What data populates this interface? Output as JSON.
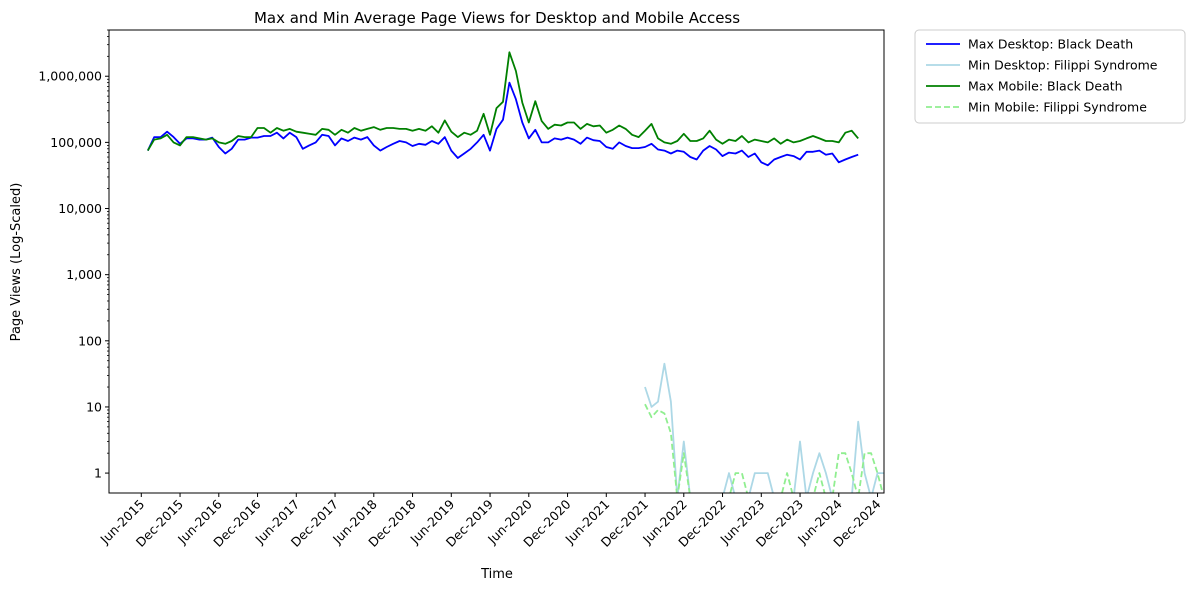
{
  "chart_data": {
    "type": "line",
    "title": "Max and Min Average Page Views for Desktop and Mobile Access",
    "xlabel": "Time",
    "ylabel": "Page Views (Log-Scaled)",
    "yscale": "log",
    "ylim": [
      0.5,
      5000000
    ],
    "xlim": [
      "2015-01",
      "2025-01"
    ],
    "x_ticks": [
      "Jun-2015",
      "Dec-2015",
      "Jun-2016",
      "Dec-2016",
      "Jun-2017",
      "Dec-2017",
      "Jun-2018",
      "Dec-2018",
      "Jun-2019",
      "Dec-2019",
      "Jun-2020",
      "Dec-2020",
      "Jun-2021",
      "Dec-2021",
      "Jun-2022",
      "Dec-2022",
      "Jun-2023",
      "Dec-2023",
      "Jun-2024",
      "Dec-2024"
    ],
    "x_tick_dates": [
      "2015-06",
      "2015-12",
      "2016-06",
      "2016-12",
      "2017-06",
      "2017-12",
      "2018-06",
      "2018-12",
      "2019-06",
      "2019-12",
      "2020-06",
      "2020-12",
      "2021-06",
      "2021-12",
      "2022-06",
      "2022-12",
      "2023-06",
      "2023-12",
      "2024-06",
      "2024-12"
    ],
    "y_ticks": [
      1,
      10,
      100,
      1000,
      10000,
      100000,
      1000000
    ],
    "y_tick_labels": [
      "1",
      "10",
      "100",
      "1,000",
      "10,000",
      "100,000",
      "1,000,000"
    ],
    "grid": false,
    "legend_position": "outside-top-right",
    "series": [
      {
        "name": "Max Desktop: Black Death",
        "color": "#0000ff",
        "style": "solid",
        "start": "2015-07",
        "values": [
          75000,
          120000,
          120000,
          145000,
          120000,
          95000,
          115000,
          115000,
          110000,
          110000,
          118000,
          85000,
          68000,
          80000,
          110000,
          110000,
          118000,
          118000,
          125000,
          125000,
          140000,
          115000,
          140000,
          120000,
          80000,
          90000,
          100000,
          130000,
          125000,
          90000,
          115000,
          105000,
          118000,
          110000,
          120000,
          90000,
          75000,
          85000,
          95000,
          105000,
          100000,
          88000,
          95000,
          92000,
          105000,
          95000,
          120000,
          75000,
          58000,
          68000,
          80000,
          100000,
          130000,
          75000,
          160000,
          220000,
          800000,
          450000,
          200000,
          115000,
          155000,
          100000,
          100000,
          115000,
          110000,
          118000,
          110000,
          95000,
          118000,
          108000,
          105000,
          85000,
          80000,
          100000,
          88000,
          82000,
          82000,
          85000,
          95000,
          78000,
          75000,
          68000,
          75000,
          72000,
          60000,
          55000,
          75000,
          88000,
          78000,
          62000,
          70000,
          68000,
          75000,
          60000,
          68000,
          50000,
          45000,
          55000,
          60000,
          65000,
          62000,
          55000,
          72000,
          72000,
          75000,
          65000,
          68000,
          50000,
          55000,
          60000,
          65000
        ]
      },
      {
        "name": "Min Desktop: Filippi Syndrome",
        "color": "#add8e6",
        "style": "solid",
        "start": "2021-12",
        "values": [
          20,
          10,
          12,
          45,
          12,
          0,
          3,
          0,
          0,
          0,
          0,
          0,
          0,
          1,
          0,
          0,
          0,
          1,
          1,
          1,
          0,
          0,
          0,
          0,
          3,
          0,
          1,
          2,
          1,
          0,
          0,
          0,
          0,
          6,
          1,
          0,
          1,
          1
        ]
      },
      {
        "name": "Max Mobile: Black Death",
        "color": "#008000",
        "style": "solid",
        "start": "2015-07",
        "values": [
          75000,
          110000,
          115000,
          130000,
          100000,
          90000,
          120000,
          120000,
          115000,
          110000,
          115000,
          100000,
          95000,
          105000,
          125000,
          120000,
          120000,
          165000,
          165000,
          140000,
          165000,
          150000,
          160000,
          145000,
          140000,
          135000,
          130000,
          160000,
          155000,
          130000,
          155000,
          140000,
          165000,
          150000,
          160000,
          170000,
          155000,
          165000,
          165000,
          160000,
          160000,
          150000,
          160000,
          150000,
          175000,
          140000,
          215000,
          145000,
          120000,
          140000,
          130000,
          150000,
          270000,
          130000,
          330000,
          410000,
          2300000,
          1200000,
          400000,
          200000,
          420000,
          210000,
          160000,
          185000,
          180000,
          200000,
          200000,
          160000,
          190000,
          175000,
          180000,
          140000,
          155000,
          180000,
          160000,
          130000,
          120000,
          150000,
          190000,
          115000,
          100000,
          95000,
          105000,
          135000,
          105000,
          105000,
          115000,
          150000,
          110000,
          95000,
          110000,
          105000,
          125000,
          100000,
          110000,
          105000,
          100000,
          115000,
          95000,
          110000,
          100000,
          105000,
          115000,
          125000,
          115000,
          105000,
          105000,
          100000,
          140000,
          150000,
          115000
        ]
      },
      {
        "name": "Min Mobile: Filippi Syndrome",
        "color": "#90ee90",
        "style": "dashed",
        "start": "2021-12",
        "values": [
          11,
          7,
          9,
          8,
          4,
          0,
          2,
          0,
          0,
          0,
          0,
          0,
          0,
          0,
          1,
          1,
          0,
          0,
          0,
          0,
          0,
          0,
          1,
          0,
          0,
          0,
          0,
          1,
          0,
          0,
          2,
          2,
          1,
          0,
          2,
          2,
          1,
          0
        ]
      }
    ]
  }
}
